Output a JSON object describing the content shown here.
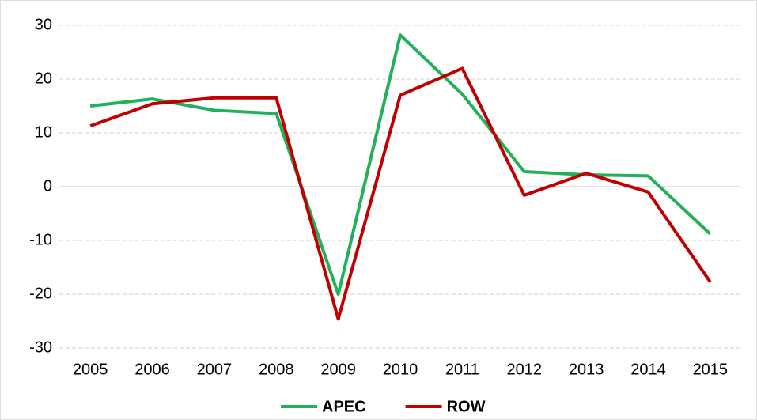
{
  "chart_data": {
    "type": "line",
    "categories": [
      "2005",
      "2006",
      "2007",
      "2008",
      "2009",
      "2010",
      "2011",
      "2012",
      "2013",
      "2014",
      "2015"
    ],
    "series": [
      {
        "name": "APEC",
        "color": "#22b05a",
        "values": [
          15.0,
          16.3,
          14.2,
          13.6,
          -20.0,
          28.2,
          17.2,
          2.8,
          2.2,
          2.0,
          -8.8
        ]
      },
      {
        "name": "ROW",
        "color": "#c00000",
        "values": [
          11.3,
          15.4,
          16.5,
          16.5,
          -24.6,
          17.0,
          22.0,
          -1.6,
          2.5,
          -1.0,
          -17.7
        ]
      }
    ],
    "ylim": [
      -30,
      30
    ],
    "yticks": [
      -30,
      -20,
      -10,
      0,
      10,
      20,
      30
    ],
    "grid": true,
    "legend": "bottom"
  }
}
